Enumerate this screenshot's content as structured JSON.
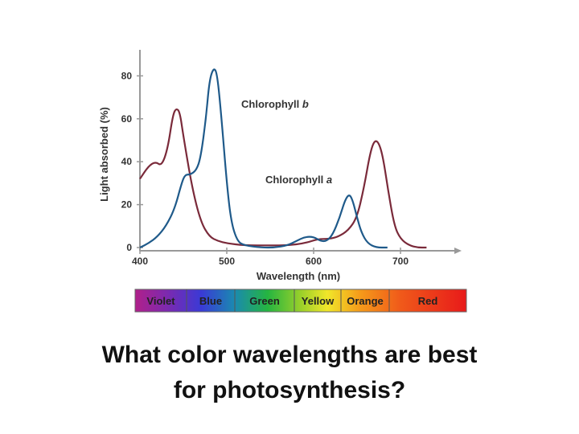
{
  "question": {
    "line1": "What color wavelengths are best",
    "line2": "for photosynthesis?"
  },
  "chart_data": {
    "type": "line",
    "xlabel": "Wavelength (nm)",
    "ylabel": "Light absorbed (%)",
    "xlim": [
      400,
      750
    ],
    "ylim": [
      0,
      90
    ],
    "xticks": [
      "400",
      "500",
      "600",
      "700"
    ],
    "yticks": [
      "0",
      "20",
      "40",
      "60",
      "80"
    ],
    "grid": false,
    "series": [
      {
        "name": "Chlorophyll a",
        "color": "#7a2a3a",
        "points": [
          [
            400,
            32
          ],
          [
            410,
            38
          ],
          [
            418,
            40
          ],
          [
            425,
            38
          ],
          [
            432,
            46
          ],
          [
            438,
            62
          ],
          [
            442,
            65
          ],
          [
            446,
            63
          ],
          [
            450,
            52
          ],
          [
            460,
            28
          ],
          [
            470,
            12
          ],
          [
            480,
            5
          ],
          [
            490,
            3
          ],
          [
            500,
            2
          ],
          [
            520,
            1
          ],
          [
            550,
            1
          ],
          [
            570,
            1
          ],
          [
            590,
            2
          ],
          [
            605,
            4
          ],
          [
            618,
            4
          ],
          [
            628,
            5
          ],
          [
            640,
            8
          ],
          [
            650,
            14
          ],
          [
            658,
            28
          ],
          [
            665,
            44
          ],
          [
            670,
            50
          ],
          [
            675,
            49
          ],
          [
            680,
            42
          ],
          [
            686,
            26
          ],
          [
            693,
            10
          ],
          [
            700,
            4
          ],
          [
            710,
            1
          ],
          [
            720,
            0
          ],
          [
            730,
            0
          ]
        ]
      },
      {
        "name": "Chlorophyll b",
        "color": "#1f5a8a",
        "points": [
          [
            400,
            0
          ],
          [
            410,
            2
          ],
          [
            420,
            5
          ],
          [
            430,
            10
          ],
          [
            440,
            18
          ],
          [
            448,
            30
          ],
          [
            452,
            34
          ],
          [
            458,
            34
          ],
          [
            465,
            36
          ],
          [
            470,
            42
          ],
          [
            476,
            60
          ],
          [
            480,
            78
          ],
          [
            485,
            84
          ],
          [
            489,
            81
          ],
          [
            494,
            60
          ],
          [
            500,
            30
          ],
          [
            505,
            12
          ],
          [
            512,
            3
          ],
          [
            520,
            1
          ],
          [
            540,
            0
          ],
          [
            555,
            0
          ],
          [
            570,
            1
          ],
          [
            580,
            3
          ],
          [
            590,
            5
          ],
          [
            600,
            5
          ],
          [
            608,
            3
          ],
          [
            615,
            3
          ],
          [
            622,
            6
          ],
          [
            630,
            14
          ],
          [
            636,
            22
          ],
          [
            641,
            25
          ],
          [
            645,
            22
          ],
          [
            650,
            14
          ],
          [
            655,
            7
          ],
          [
            662,
            2
          ],
          [
            672,
            0
          ],
          [
            685,
            0
          ]
        ]
      }
    ],
    "annotations": [
      "Chlorophyll b",
      "Chlorophyll a"
    ],
    "spectrum_bands": [
      {
        "label": "Violet",
        "color": "#a0239a"
      },
      {
        "label": "Blue",
        "color": "#3a3ad6"
      },
      {
        "label": "Green",
        "color": "#25b540"
      },
      {
        "label": "Yellow",
        "color": "#e8e82a"
      },
      {
        "label": "Orange",
        "color": "#f08a1a"
      },
      {
        "label": "Red",
        "color": "#e81a1a"
      }
    ]
  }
}
